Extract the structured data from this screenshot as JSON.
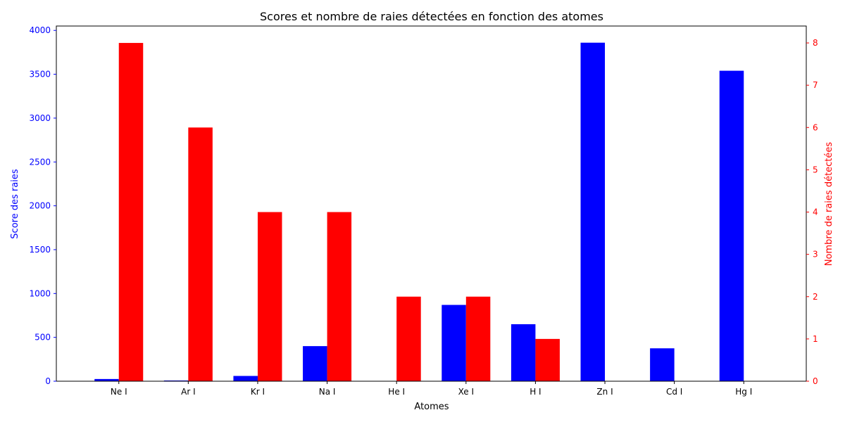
{
  "chart_data": {
    "type": "bar",
    "title": "Scores et nombre de raies détectées en fonction des atomes",
    "xlabel": "Atomes",
    "ylabel_left": "Score des raies",
    "ylabel_right": "Nombre de raies détectées",
    "categories": [
      "Ne I",
      "Ar I",
      "Kr I",
      "Na I",
      "He I",
      "Xe I",
      "H I",
      "Zn I",
      "Cd I",
      "Hg I"
    ],
    "series": [
      {
        "axis": "left",
        "color": "#0000ff",
        "values": [
          25,
          8,
          60,
          400,
          0,
          870,
          650,
          3860,
          375,
          3540
        ]
      },
      {
        "axis": "right",
        "color": "#ff0000",
        "values": [
          8,
          6,
          4,
          4,
          2,
          2,
          1,
          0,
          0,
          0
        ]
      }
    ],
    "ylim_left": [
      0,
      4050
    ],
    "yticks_left": [
      "0",
      "500",
      "1000",
      "1500",
      "2000",
      "2500",
      "3000",
      "3500",
      "4000"
    ],
    "ylim_right": [
      0,
      8.4
    ],
    "yticks_right": [
      "0",
      "1",
      "2",
      "3",
      "4",
      "5",
      "6",
      "7",
      "8"
    ],
    "left_axis_color": "#0000ff",
    "right_axis_color": "#ff0000",
    "grid": false,
    "legend": "none"
  }
}
